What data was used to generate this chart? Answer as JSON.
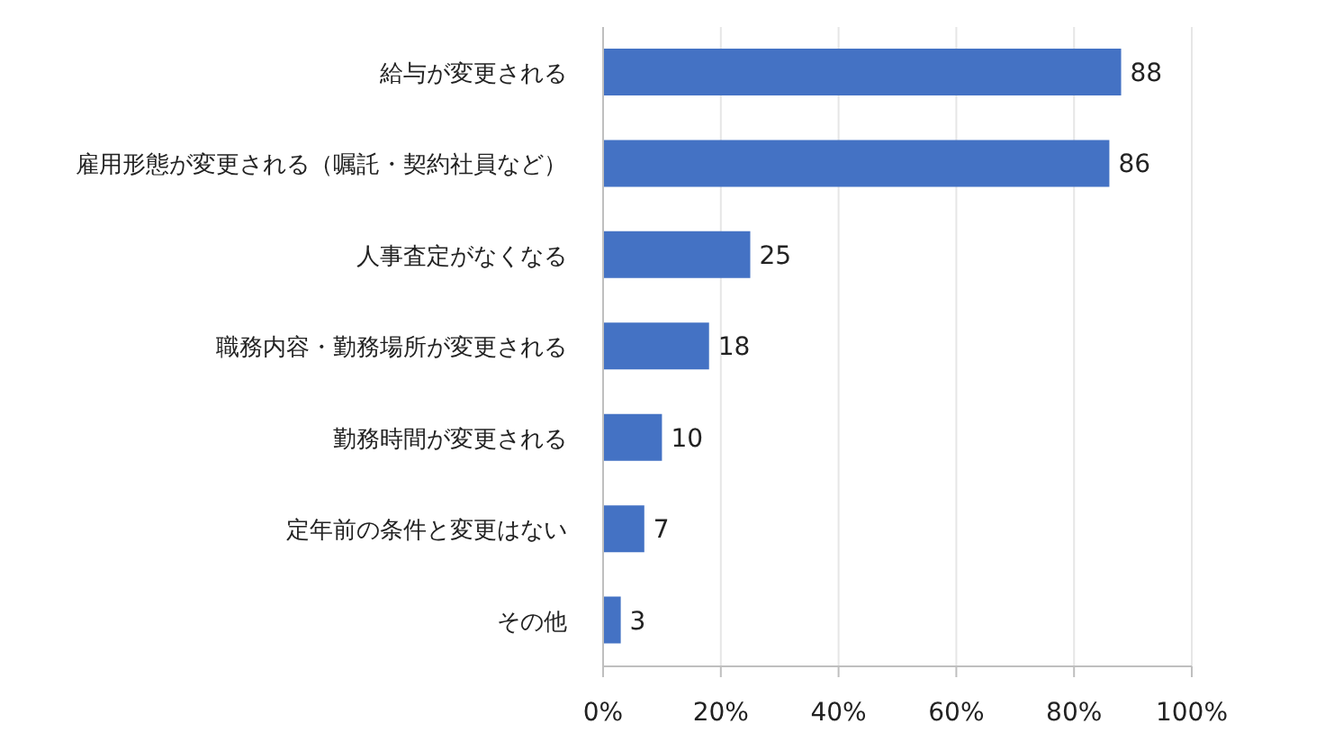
{
  "chart_data": {
    "type": "bar",
    "orientation": "horizontal",
    "categories": [
      "給与が変更される",
      "雇用形態が変更される（嘱託・契約社員など）",
      "人事査定がなくなる",
      "職務内容・勤務場所が変更される",
      "勤務時間が変更される",
      "定年前の条件と変更はない",
      "その他"
    ],
    "values": [
      88,
      86,
      25,
      18,
      10,
      7,
      3
    ],
    "color": "#4472c4",
    "xlim": [
      0,
      100
    ],
    "xticks": [
      {
        "value": 0,
        "label": "0%"
      },
      {
        "value": 20,
        "label": "20%"
      },
      {
        "value": 40,
        "label": "40%"
      },
      {
        "value": 60,
        "label": "60%"
      },
      {
        "value": 80,
        "label": "80%"
      },
      {
        "value": 100,
        "label": "100%"
      }
    ],
    "grid": "x",
    "data_labels": true
  }
}
